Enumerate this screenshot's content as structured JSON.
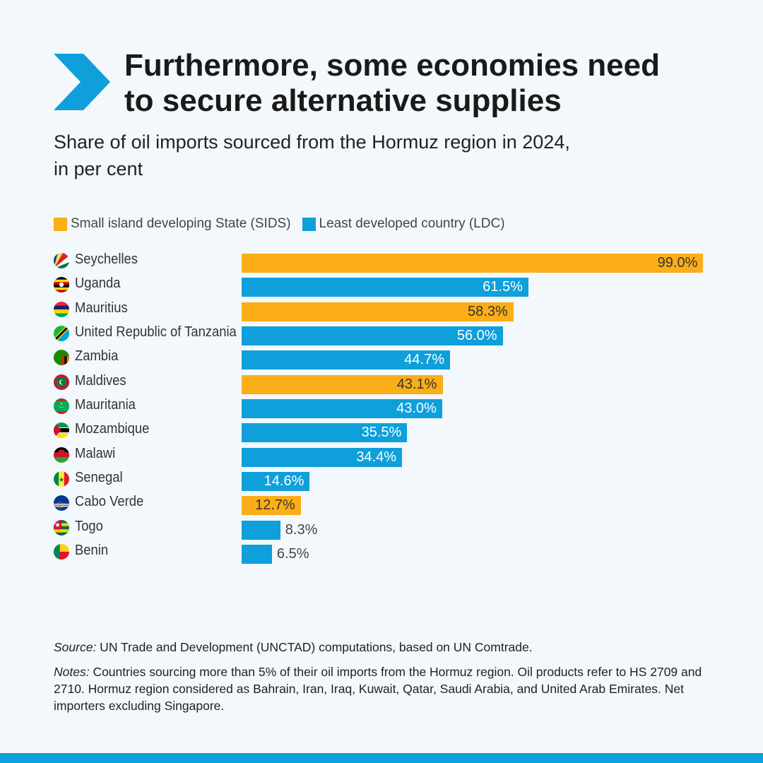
{
  "header": {
    "title_line1": "Furthermore, some economies need",
    "title_line2": "to secure alternative supplies",
    "subtitle_line1": "Share of oil imports sourced from the Hormuz region in 2024,",
    "subtitle_line2": "in per cent"
  },
  "colors": {
    "sids": "#fbae17",
    "ldc": "#0f9fdb",
    "chevron": "#0f9fdb",
    "background": "#f2f8fc"
  },
  "legend": [
    {
      "key": "sids",
      "label": "Small island developing State (SIDS)"
    },
    {
      "key": "ldc",
      "label": "Least developed country (LDC)"
    }
  ],
  "chart_data": {
    "type": "bar",
    "orientation": "horizontal",
    "categories": [
      "Seychelles",
      "Uganda",
      "Mauritius",
      "United Republic of Tanzania",
      "Zambia",
      "Maldives",
      "Mauritania",
      "Mozambique",
      "Malawi",
      "Senegal",
      "Cabo Verde",
      "Togo",
      "Benin"
    ],
    "values": [
      99.0,
      61.5,
      58.3,
      56.0,
      44.7,
      43.1,
      43.0,
      35.5,
      34.4,
      14.6,
      12.7,
      8.3,
      6.5
    ],
    "labels": [
      "99.0%",
      "61.5%",
      "58.3%",
      "56.0%",
      "44.7%",
      "43.1%",
      "43.0%",
      "35.5%",
      "34.4%",
      "14.6%",
      "12.7%",
      "8.3%",
      "6.5%"
    ],
    "group": [
      "sids",
      "ldc",
      "sids",
      "ldc",
      "ldc",
      "sids",
      "ldc",
      "ldc",
      "ldc",
      "ldc",
      "sids",
      "ldc",
      "ldc"
    ],
    "flags": [
      "seychelles-flag-icon",
      "uganda-flag-icon",
      "mauritius-flag-icon",
      "tanzania-flag-icon",
      "zambia-flag-icon",
      "maldives-flag-icon",
      "mauritania-flag-icon",
      "mozambique-flag-icon",
      "malawi-flag-icon",
      "senegal-flag-icon",
      "cabo-verde-flag-icon",
      "togo-flag-icon",
      "benin-flag-icon"
    ],
    "xlim": [
      0,
      100
    ],
    "grid": false,
    "legend_position": "top-left"
  },
  "footer": {
    "source_label": "Source:",
    "source_text": " UN Trade and Development (UNCTAD) computations, based on UN Comtrade.",
    "notes_label": "Notes:",
    "notes_text": " Countries sourcing more than 5% of their oil imports from the Hormuz region. Oil products refer to HS 2709 and 2710. Hormuz region considered as Bahrain, Iran, Iraq, Kuwait, Qatar, Saudi Arabia, and United Arab Emirates. Net importers excluding Singapore."
  }
}
